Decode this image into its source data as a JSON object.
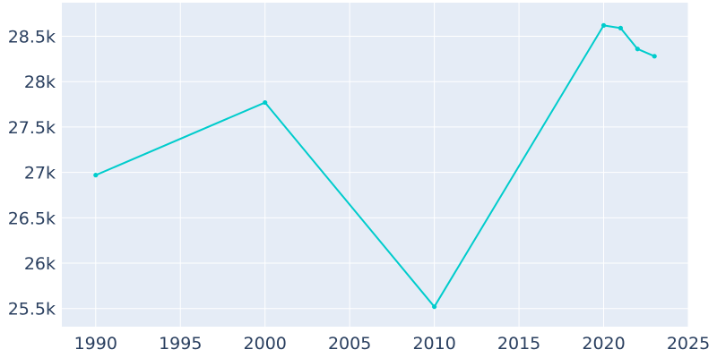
{
  "chart_data": {
    "type": "line",
    "title": "",
    "xlabel": "",
    "ylabel": "",
    "xlim": [
      1988,
      2025
    ],
    "ylim": [
      25300,
      28870
    ],
    "x_ticks": [
      1990,
      1995,
      2000,
      2005,
      2010,
      2015,
      2020,
      2025
    ],
    "x_tick_labels": [
      "1990",
      "1995",
      "2000",
      "2005",
      "2010",
      "2015",
      "2020",
      "2025"
    ],
    "y_ticks": [
      25500,
      26000,
      26500,
      27000,
      27500,
      28000,
      28500
    ],
    "y_tick_labels": [
      "25.5k",
      "26k",
      "26.5k",
      "27k",
      "27.5k",
      "28k",
      "28.5k"
    ],
    "grid": true,
    "background_color": "#e5ecf6",
    "series": [
      {
        "color": "#00cccc",
        "x": [
          1990,
          2000,
          2010,
          2020,
          2021,
          2022,
          2023
        ],
        "values": [
          26970,
          27770,
          25520,
          28620,
          28590,
          28360,
          28280
        ]
      }
    ]
  }
}
